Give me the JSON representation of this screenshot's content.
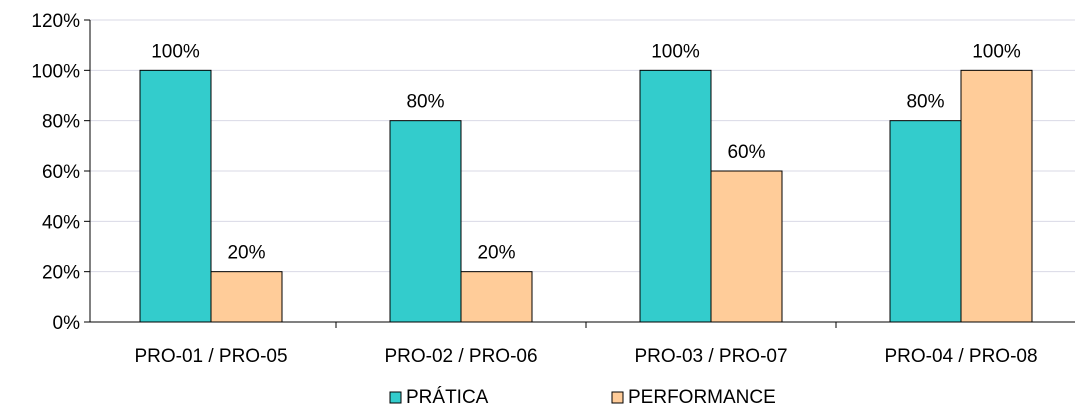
{
  "chart_data": {
    "type": "bar",
    "categories": [
      "PRO-01 / PRO-05",
      "PRO-02 / PRO-06",
      "PRO-03 / PRO-07",
      "PRO-04 / PRO-08"
    ],
    "series": [
      {
        "name": "PRÁTICA",
        "values": [
          100,
          80,
          100,
          80
        ],
        "labels": [
          "100%",
          "80%",
          "100%",
          "80%"
        ],
        "color": "#33CCCC"
      },
      {
        "name": "PERFORMANCE",
        "values": [
          20,
          20,
          60,
          100
        ],
        "labels": [
          "20%",
          "20%",
          "60%",
          "100%"
        ],
        "color": "#FFCC99"
      }
    ],
    "yticks": [
      "0%",
      "20%",
      "40%",
      "60%",
      "80%",
      "100%",
      "120%"
    ],
    "ylim": [
      0,
      120
    ],
    "grid": true,
    "legend": "bottom",
    "title": "",
    "xlabel": "",
    "ylabel": ""
  }
}
